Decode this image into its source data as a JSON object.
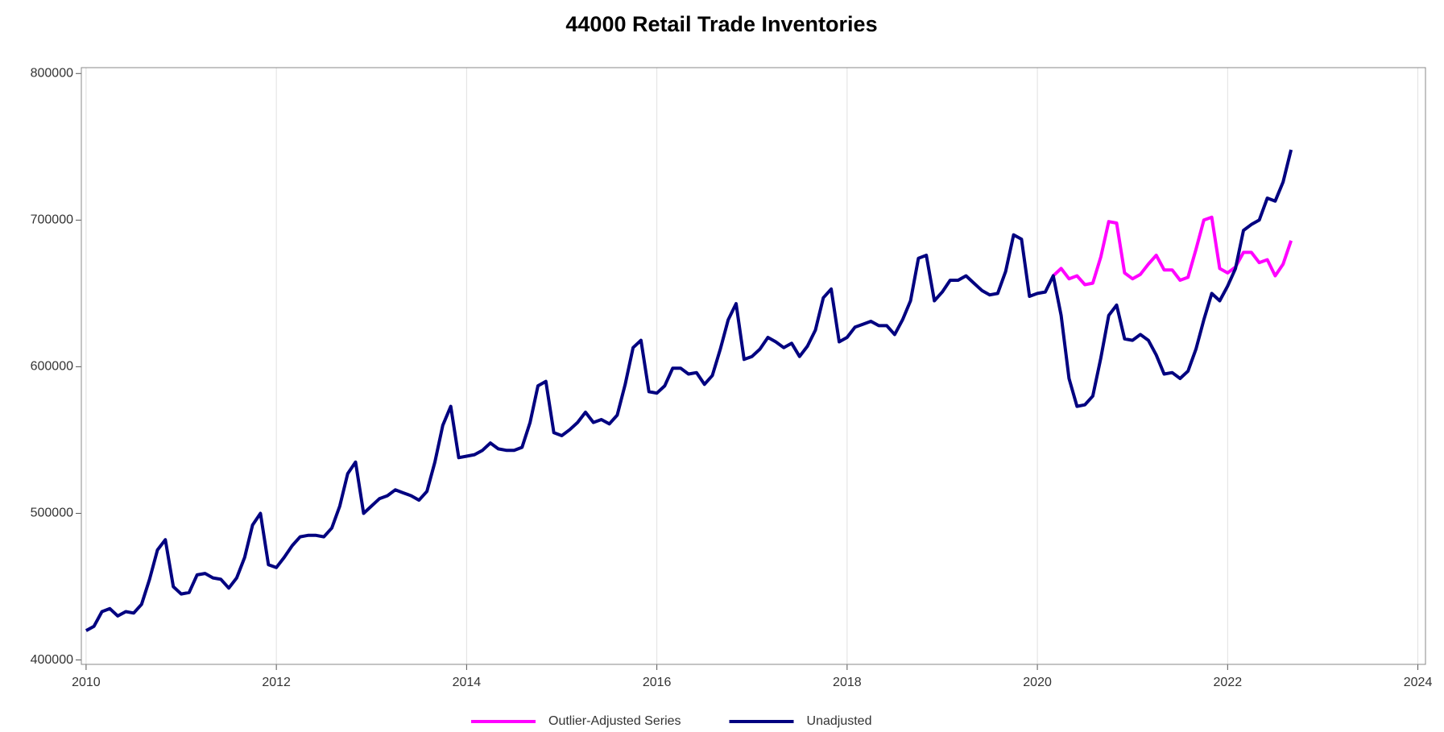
{
  "chart_data": {
    "type": "line",
    "title": "44000 Retail Trade Inventories",
    "x": [
      2010.0,
      2010.083,
      2010.167,
      2010.25,
      2010.333,
      2010.417,
      2010.5,
      2010.583,
      2010.667,
      2010.75,
      2010.833,
      2010.917,
      2011.0,
      2011.083,
      2011.167,
      2011.25,
      2011.333,
      2011.417,
      2011.5,
      2011.583,
      2011.667,
      2011.75,
      2011.833,
      2011.917,
      2012.0,
      2012.083,
      2012.167,
      2012.25,
      2012.333,
      2012.417,
      2012.5,
      2012.583,
      2012.667,
      2012.75,
      2012.833,
      2012.917,
      2013.0,
      2013.083,
      2013.167,
      2013.25,
      2013.333,
      2013.417,
      2013.5,
      2013.583,
      2013.667,
      2013.75,
      2013.833,
      2013.917,
      2014.0,
      2014.083,
      2014.167,
      2014.25,
      2014.333,
      2014.417,
      2014.5,
      2014.583,
      2014.667,
      2014.75,
      2014.833,
      2014.917,
      2015.0,
      2015.083,
      2015.167,
      2015.25,
      2015.333,
      2015.417,
      2015.5,
      2015.583,
      2015.667,
      2015.75,
      2015.833,
      2015.917,
      2016.0,
      2016.083,
      2016.167,
      2016.25,
      2016.333,
      2016.417,
      2016.5,
      2016.583,
      2016.667,
      2016.75,
      2016.833,
      2016.917,
      2017.0,
      2017.083,
      2017.167,
      2017.25,
      2017.333,
      2017.417,
      2017.5,
      2017.583,
      2017.667,
      2017.75,
      2017.833,
      2017.917,
      2018.0,
      2018.083,
      2018.167,
      2018.25,
      2018.333,
      2018.417,
      2018.5,
      2018.583,
      2018.667,
      2018.75,
      2018.833,
      2018.917,
      2019.0,
      2019.083,
      2019.167,
      2019.25,
      2019.333,
      2019.417,
      2019.5,
      2019.583,
      2019.667,
      2019.75,
      2019.833,
      2019.917,
      2020.0,
      2020.083,
      2020.167,
      2020.25,
      2020.333,
      2020.417,
      2020.5,
      2020.583,
      2020.667,
      2020.75,
      2020.833,
      2020.917,
      2021.0,
      2021.083,
      2021.167,
      2021.25,
      2021.333,
      2021.417,
      2021.5,
      2021.583,
      2021.667,
      2021.75,
      2021.833,
      2021.917,
      2022.0,
      2022.083,
      2022.167,
      2022.25,
      2022.333,
      2022.417,
      2022.5,
      2022.583,
      2022.667
    ],
    "series": [
      {
        "name": "Outlier-Adjusted Series",
        "color": "#ff00ff",
        "values": [
          null,
          null,
          null,
          null,
          null,
          null,
          null,
          null,
          null,
          null,
          null,
          null,
          null,
          null,
          null,
          null,
          null,
          null,
          null,
          null,
          null,
          null,
          null,
          null,
          null,
          null,
          null,
          null,
          null,
          null,
          null,
          null,
          null,
          null,
          null,
          null,
          null,
          null,
          null,
          null,
          null,
          null,
          null,
          null,
          null,
          null,
          null,
          null,
          null,
          null,
          null,
          null,
          null,
          null,
          null,
          null,
          null,
          null,
          null,
          null,
          null,
          null,
          null,
          null,
          null,
          null,
          null,
          null,
          null,
          null,
          null,
          null,
          null,
          null,
          null,
          null,
          null,
          null,
          null,
          null,
          null,
          null,
          null,
          null,
          null,
          null,
          null,
          null,
          null,
          null,
          null,
          null,
          null,
          null,
          null,
          null,
          null,
          null,
          null,
          null,
          null,
          null,
          null,
          null,
          null,
          null,
          null,
          null,
          null,
          null,
          null,
          null,
          null,
          null,
          null,
          null,
          null,
          null,
          null,
          null,
          null,
          null,
          662000,
          667000,
          660000,
          662000,
          656000,
          657000,
          675000,
          699000,
          698000,
          664000,
          660000,
          663000,
          670000,
          676000,
          666000,
          666000,
          659000,
          661000,
          680000,
          700000,
          702000,
          667000,
          664000,
          668000,
          678000,
          678000,
          671000,
          673000,
          662000,
          670000,
          686000
        ]
      },
      {
        "name": "Unadjusted",
        "color": "#000080",
        "values": [
          420000,
          423000,
          433000,
          435000,
          430000,
          433000,
          432000,
          438000,
          455000,
          475000,
          482000,
          450000,
          445000,
          446000,
          458000,
          459000,
          456000,
          455000,
          449000,
          456000,
          470000,
          492000,
          500000,
          465000,
          463000,
          470000,
          478000,
          484000,
          485000,
          485000,
          484000,
          490000,
          505000,
          527000,
          535000,
          500000,
          505000,
          510000,
          512000,
          516000,
          514000,
          512000,
          509000,
          515000,
          535000,
          560000,
          573000,
          538000,
          539000,
          540000,
          543000,
          548000,
          544000,
          543000,
          543000,
          545000,
          562000,
          587000,
          590000,
          555000,
          553000,
          557000,
          562000,
          569000,
          562000,
          564000,
          561000,
          567000,
          588000,
          613000,
          618000,
          583000,
          582000,
          587000,
          599000,
          599000,
          595000,
          596000,
          588000,
          594000,
          612000,
          632000,
          643000,
          605000,
          607000,
          612000,
          620000,
          617000,
          613000,
          616000,
          607000,
          614000,
          625000,
          647000,
          653000,
          617000,
          620000,
          627000,
          629000,
          631000,
          628000,
          628000,
          622000,
          632000,
          645000,
          674000,
          676000,
          645000,
          651000,
          659000,
          659000,
          662000,
          657000,
          652000,
          649000,
          650000,
          665000,
          690000,
          687000,
          648000,
          650000,
          651000,
          662000,
          635000,
          592000,
          573000,
          574000,
          580000,
          606000,
          635000,
          642000,
          619000,
          618000,
          622000,
          618000,
          608000,
          595000,
          596000,
          592000,
          597000,
          612000,
          632000,
          650000,
          645000,
          655000,
          667000,
          693000,
          697000,
          700000,
          715000,
          713000,
          726000,
          748000
        ]
      }
    ],
    "xlim": [
      2009.95,
      2024.08
    ],
    "xticks": [
      2010,
      2012,
      2014,
      2016,
      2018,
      2020,
      2022,
      2024
    ],
    "ylim": [
      397000,
      804000
    ],
    "yticks": [
      400000,
      500000,
      600000,
      700000,
      800000
    ],
    "grid": true
  }
}
